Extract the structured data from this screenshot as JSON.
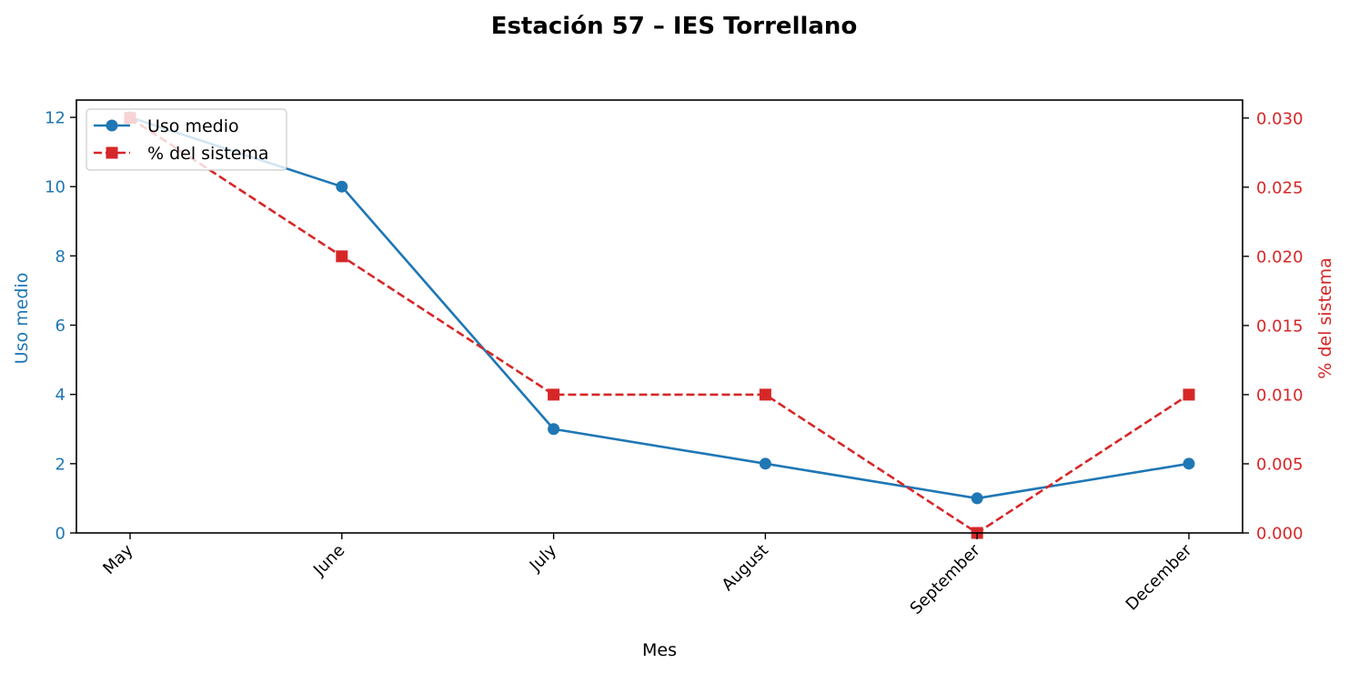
{
  "chart_data": {
    "type": "line",
    "title": "Estación 57 – IES Torrellano",
    "xlabel": "Mes",
    "categories": [
      "May",
      "June",
      "July",
      "August",
      "September",
      "December"
    ],
    "y_left": {
      "label": "Uso medio",
      "ylim": [
        0,
        12.5
      ],
      "ticks": [
        0,
        2,
        4,
        6,
        8,
        10,
        12
      ],
      "tick_labels": [
        "0",
        "2",
        "4",
        "6",
        "8",
        "10",
        "12"
      ],
      "color": "#1f77b4"
    },
    "y_right": {
      "label": "% del sistema",
      "ylim": [
        0,
        0.0313
      ],
      "ticks": [
        0,
        0.005,
        0.01,
        0.015,
        0.02,
        0.025,
        0.03
      ],
      "tick_labels": [
        "0.000",
        "0.005",
        "0.010",
        "0.015",
        "0.020",
        "0.025",
        "0.030"
      ],
      "color": "#d62728"
    },
    "series": [
      {
        "name": "Uso medio",
        "axis": "left",
        "values": [
          12,
          10,
          3,
          2,
          1,
          2
        ],
        "color": "#1f77b4",
        "linestyle": "solid",
        "marker": "circle"
      },
      {
        "name": "% del sistema",
        "axis": "right",
        "values": [
          0.03,
          0.02,
          0.01,
          0.01,
          0.0,
          0.01
        ],
        "color": "#d62728",
        "linestyle": "dashed",
        "marker": "square"
      }
    ],
    "grid": false,
    "legend_position": "upper-left"
  }
}
